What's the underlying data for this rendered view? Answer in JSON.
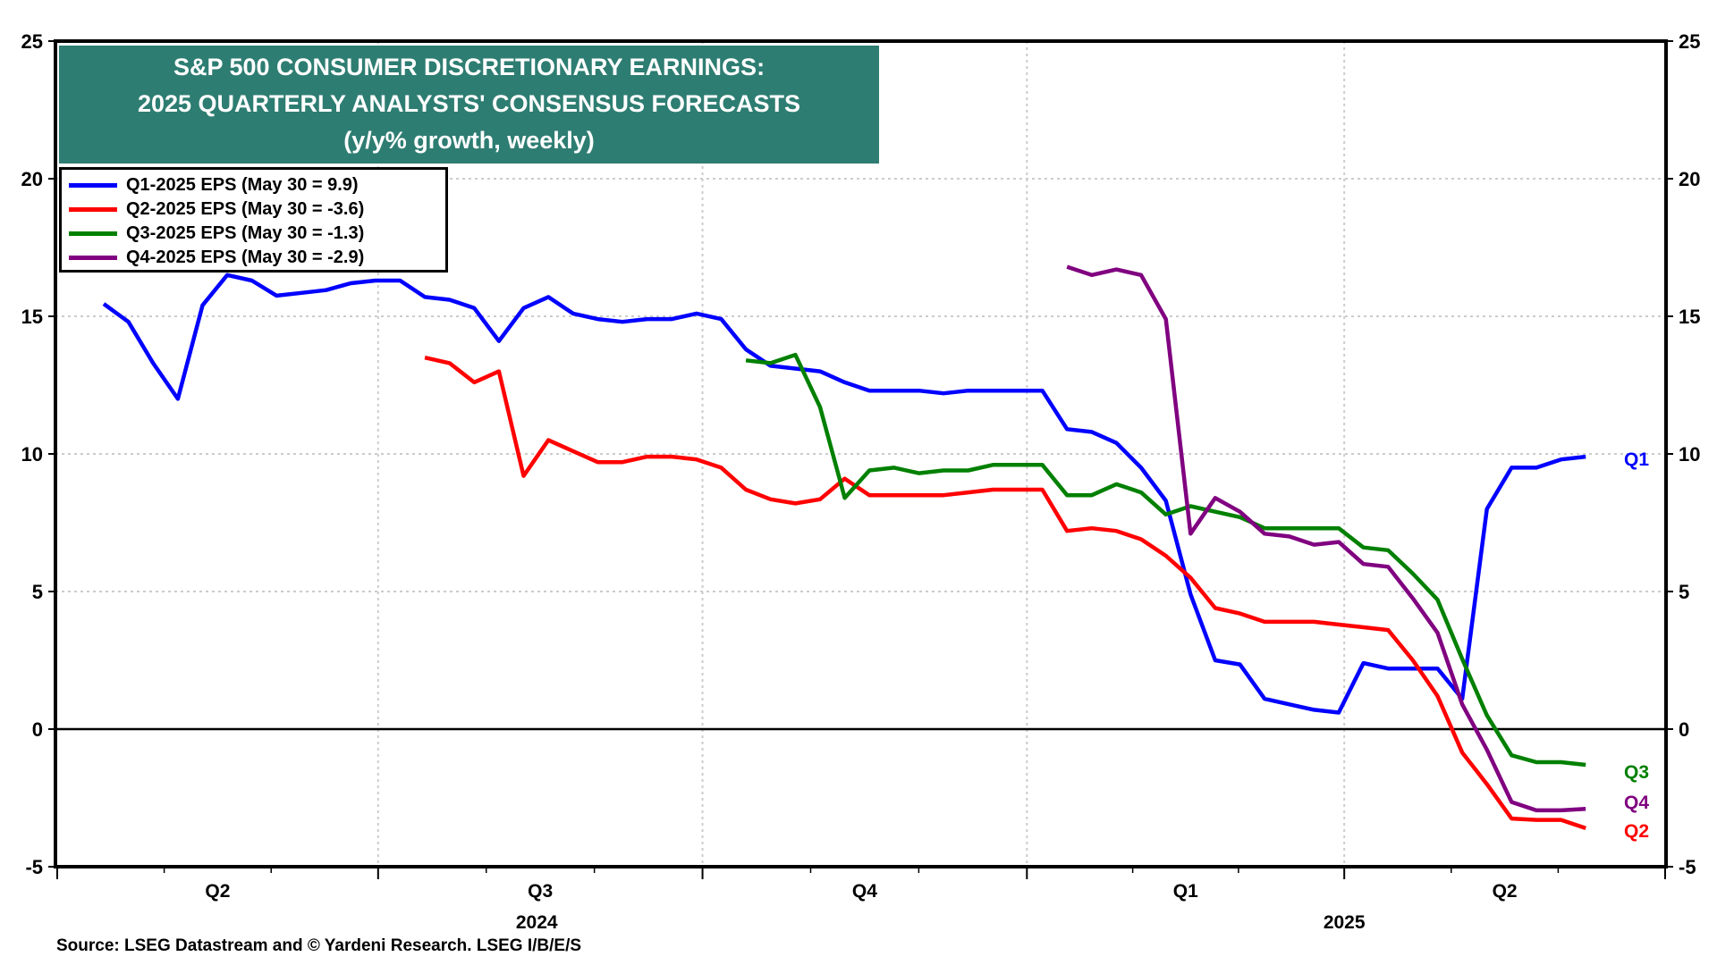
{
  "chart_data": {
    "type": "line",
    "title": [
      "S&P 500 CONSUMER DISCRETIONARY EARNINGS:",
      "2025 QUARTERLY ANALYSTS' CONSENSUS FORECASTS",
      "(y/y% growth, weekly)"
    ],
    "xlabel": "",
    "ylabel": "",
    "ylim": [
      -5,
      25
    ],
    "yticks": [
      -5,
      0,
      5,
      10,
      15,
      20,
      25
    ],
    "x_start": "2024-04-05",
    "x_step_days": 7,
    "x_count": 61,
    "x_end": "2025-05-30",
    "xlim": [
      "2024-04-01",
      "2025-07-01"
    ],
    "xticks_quarters": [
      {
        "label": "Q2",
        "start": "2024-04-01",
        "end": "2024-07-01"
      },
      {
        "label": "Q3",
        "start": "2024-07-01",
        "end": "2024-10-01"
      },
      {
        "label": "Q4",
        "start": "2024-10-01",
        "end": "2025-01-01"
      },
      {
        "label": "Q1",
        "start": "2025-01-01",
        "end": "2025-04-01"
      },
      {
        "label": "Q2",
        "start": "2025-04-01",
        "end": "2025-07-01"
      }
    ],
    "xticks_years": [
      {
        "label": "2024",
        "at": "2024-08-15"
      },
      {
        "label": "2025",
        "at": "2025-04-01"
      }
    ],
    "grid": true,
    "legend_position": "top-left",
    "series": [
      {
        "name": "Q1-2025 EPS (May 30 = 9.9)",
        "short": "Q1",
        "color": "#0000ff",
        "start_index": 0,
        "values": [
          15.45,
          14.8,
          13.3,
          12.0,
          15.4,
          16.5,
          16.3,
          15.75,
          15.85,
          15.95,
          16.2,
          16.3,
          16.3,
          15.7,
          15.6,
          15.3,
          14.1,
          15.3,
          15.7,
          15.1,
          14.9,
          14.8,
          14.9,
          14.9,
          15.1,
          14.9,
          13.8,
          13.2,
          13.1,
          13.0,
          12.6,
          12.3,
          12.3,
          12.3,
          12.2,
          12.3,
          12.3,
          12.3,
          12.3,
          10.9,
          10.8,
          10.4,
          9.5,
          8.3,
          4.9,
          2.5,
          2.35,
          1.1,
          0.9,
          0.7,
          0.6,
          2.4,
          2.2,
          2.2,
          2.2,
          1.1,
          8.0,
          9.5,
          9.5,
          9.8,
          9.9
        ]
      },
      {
        "name": "Q2-2025 EPS (May 30 = -3.6)",
        "short": "Q2",
        "color": "#ff0000",
        "start_index": 13,
        "values": [
          13.5,
          13.3,
          12.6,
          13.0,
          9.2,
          10.5,
          10.1,
          9.7,
          9.7,
          9.9,
          9.9,
          9.8,
          9.5,
          8.7,
          8.35,
          8.2,
          8.35,
          9.1,
          8.5,
          8.5,
          8.5,
          8.5,
          8.6,
          8.7,
          8.7,
          8.7,
          7.2,
          7.3,
          7.2,
          6.9,
          6.3,
          5.5,
          4.4,
          4.2,
          3.9,
          3.9,
          3.9,
          3.8,
          3.7,
          3.6,
          2.5,
          1.2,
          -0.85,
          -2.0,
          -3.25,
          -3.3,
          -3.3,
          -3.6
        ]
      },
      {
        "name": "Q3-2025 EPS (May 30 = -1.3)",
        "short": "Q3",
        "color": "#008000",
        "start_index": 26,
        "values": [
          13.4,
          13.3,
          13.6,
          11.7,
          8.4,
          9.4,
          9.5,
          9.3,
          9.4,
          9.4,
          9.6,
          9.6,
          9.6,
          8.5,
          8.5,
          8.9,
          8.6,
          7.8,
          8.1,
          7.9,
          7.7,
          7.3,
          7.3,
          7.3,
          7.3,
          6.6,
          6.5,
          5.65,
          4.7,
          2.55,
          0.5,
          -0.95,
          -1.2,
          -1.2,
          -1.3
        ]
      },
      {
        "name": "Q4-2025 EPS (May 30 = -2.9)",
        "short": "Q4",
        "color": "#800080",
        "start_index": 39,
        "values": [
          16.8,
          16.5,
          16.7,
          16.5,
          14.9,
          7.1,
          8.4,
          7.9,
          7.1,
          7.0,
          6.7,
          6.8,
          6.0,
          5.9,
          4.75,
          3.5,
          0.9,
          -0.75,
          -2.65,
          -2.95,
          -2.95,
          -2.9
        ]
      }
    ],
    "end_labels": [
      "Q1",
      "Q3",
      "Q4",
      "Q2"
    ],
    "source": "Source: LSEG Datastream and © Yardeni Research. LSEG I/B/E/S"
  },
  "colors": {
    "title_background": "#2e7d72",
    "title_text": "#ffffff",
    "axis": "#000000",
    "grid": "#cccccc"
  }
}
